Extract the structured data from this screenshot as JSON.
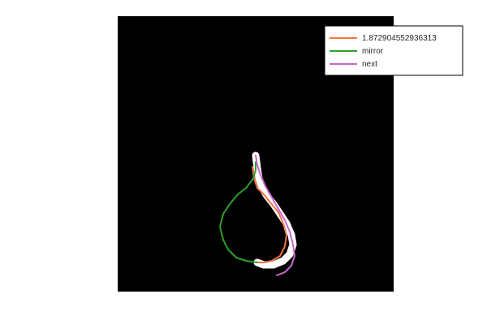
{
  "chart_data": {
    "type": "line",
    "title": "",
    "xlabel": "",
    "ylabel": "",
    "axes_visible": false,
    "plot_background": "#000000",
    "figure_background": "#ffffff",
    "xlim": [
      0,
      340
    ],
    "ylim": [
      0,
      340
    ],
    "legend": {
      "placement": "top-right",
      "box": true
    },
    "background_shape": {
      "description": "white stroke behind curves",
      "color": "#ffffff",
      "points": [
        [
          170,
          168
        ],
        [
          171,
          160
        ],
        [
          172,
          152
        ],
        [
          174,
          140
        ],
        [
          178,
          128
        ],
        [
          184,
          118
        ],
        [
          192,
          108
        ],
        [
          200,
          96
        ],
        [
          208,
          84
        ],
        [
          214,
          70
        ],
        [
          216,
          58
        ],
        [
          212,
          46
        ],
        [
          204,
          38
        ],
        [
          192,
          33
        ],
        [
          180,
          33
        ],
        [
          172,
          36
        ]
      ]
    },
    "series": [
      {
        "name": "1.872904552936313",
        "color": "#f4743f",
        "points": [
          [
            166,
            154
          ],
          [
            168,
            140
          ],
          [
            172,
            128
          ],
          [
            180,
            120
          ],
          [
            188,
            110
          ],
          [
            198,
            98
          ],
          [
            204,
            84
          ],
          [
            208,
            70
          ],
          [
            206,
            56
          ],
          [
            200,
            44
          ],
          [
            190,
            38
          ],
          [
            180,
            36
          ],
          [
            172,
            36
          ]
        ]
      },
      {
        "name": "mirror",
        "color": "#2ca02c",
        "points": [
          [
            170,
            160
          ],
          [
            170,
            150
          ],
          [
            166,
            138
          ],
          [
            158,
            128
          ],
          [
            148,
            120
          ],
          [
            138,
            108
          ],
          [
            130,
            96
          ],
          [
            126,
            80
          ],
          [
            130,
            64
          ],
          [
            136,
            52
          ],
          [
            146,
            42
          ],
          [
            158,
            38
          ],
          [
            172,
            36
          ]
        ]
      },
      {
        "name": "next",
        "color": "#cc66cc",
        "points": [
          [
            170,
            168
          ],
          [
            172,
            156
          ],
          [
            176,
            144
          ],
          [
            182,
            130
          ],
          [
            190,
            116
          ],
          [
            198,
            102
          ],
          [
            206,
            88
          ],
          [
            212,
            74
          ],
          [
            216,
            58
          ],
          [
            218,
            44
          ],
          [
            214,
            32
          ],
          [
            206,
            24
          ],
          [
            196,
            20
          ]
        ]
      }
    ]
  }
}
